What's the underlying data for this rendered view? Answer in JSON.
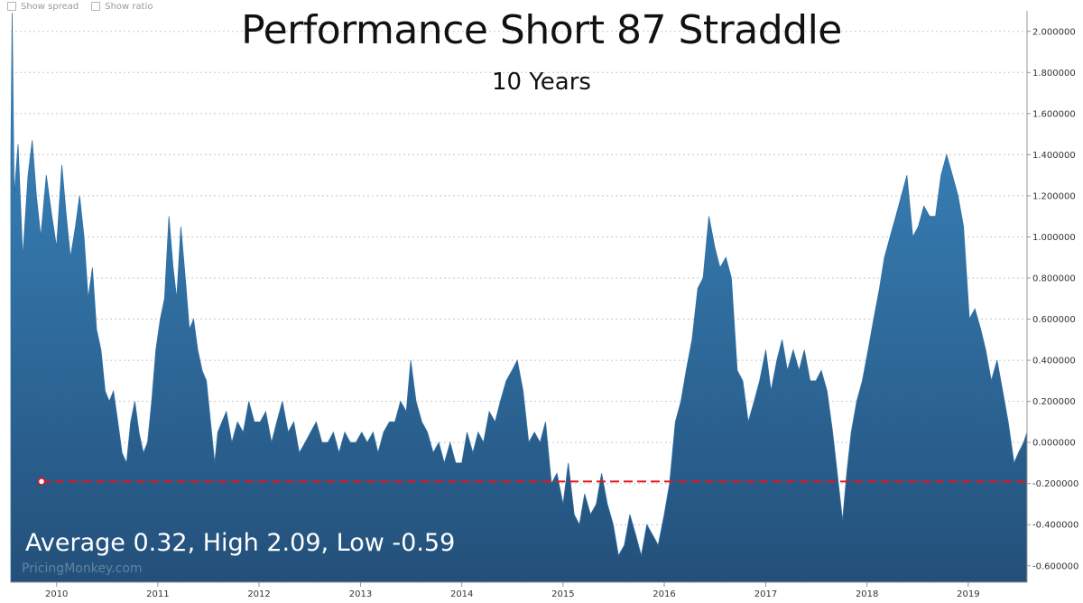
{
  "controls": {
    "show_spread": "Show spread",
    "show_ratio": "Show ratio"
  },
  "stats_text": "Average 0.32, High 2.09, Low -0.59",
  "watermark": "PricingMonkey.com",
  "colors": {
    "area_top": "#3d8cc6",
    "area_bottom": "#23507a",
    "average_line": "#e8141c",
    "grid": "#c8c8c8",
    "axis_text": "#333333"
  },
  "chart_data": {
    "type": "area",
    "title": "Performance Short 87 Straddle",
    "subtitle": "10 Years",
    "xlabel": "",
    "ylabel": "",
    "x_ticks": [
      "2010",
      "2011",
      "2012",
      "2013",
      "2014",
      "2015",
      "2016",
      "2017",
      "2018",
      "2019"
    ],
    "xlim": [
      "2009-07-20",
      "2019-08-01"
    ],
    "ylim": [
      -0.68,
      2.1
    ],
    "y_ticks": [
      "-0.600000",
      "-0.400000",
      "-0.200000",
      "0.000000",
      "0.200000",
      "0.400000",
      "0.600000",
      "0.800000",
      "1.000000",
      "1.200000",
      "1.400000",
      "1.600000",
      "1.800000",
      "2.000000"
    ],
    "y_axis_position": "right",
    "grid": true,
    "average": 0.32,
    "high": 2.09,
    "low": -0.59,
    "reference_line": {
      "value": -0.19,
      "style": "dashed",
      "label": ""
    },
    "series": [
      {
        "x": [
          "2009-07-20",
          "2009-07-25",
          "2009-08-01",
          "2009-08-15",
          "2009-09-01",
          "2009-09-20",
          "2009-10-05",
          "2009-10-20",
          "2009-11-05",
          "2009-11-25",
          "2009-12-15",
          "2010-01-01",
          "2010-01-20",
          "2010-02-05",
          "2010-02-20",
          "2010-03-10",
          "2010-03-25",
          "2010-04-10",
          "2010-04-25",
          "2010-05-10",
          "2010-05-25",
          "2010-06-10",
          "2010-06-25",
          "2010-07-10",
          "2010-07-25",
          "2010-08-10",
          "2010-08-25",
          "2010-09-10",
          "2010-09-25",
          "2010-10-10",
          "2010-10-25",
          "2010-11-10",
          "2010-11-25",
          "2010-12-10",
          "2010-12-25",
          "2011-01-10",
          "2011-01-25",
          "2011-02-10",
          "2011-02-25",
          "2011-03-10",
          "2011-03-25",
          "2011-04-10",
          "2011-04-25",
          "2011-05-10",
          "2011-05-25",
          "2011-06-10",
          "2011-06-25",
          "2011-07-10",
          "2011-07-25",
          "2011-08-05",
          "2011-08-20",
          "2011-09-05",
          "2011-09-25",
          "2011-10-15",
          "2011-11-05",
          "2011-11-25",
          "2011-12-15",
          "2012-01-05",
          "2012-01-25",
          "2012-02-15",
          "2012-03-05",
          "2012-03-25",
          "2012-04-15",
          "2012-05-05",
          "2012-05-25",
          "2012-06-15",
          "2012-07-05",
          "2012-07-25",
          "2012-08-15",
          "2012-09-05",
          "2012-09-25",
          "2012-10-15",
          "2012-11-05",
          "2012-11-25",
          "2012-12-15",
          "2013-01-05",
          "2013-01-25",
          "2013-02-15",
          "2013-03-05",
          "2013-03-25",
          "2013-04-15",
          "2013-05-05",
          "2013-05-25",
          "2013-06-15",
          "2013-07-01",
          "2013-07-20",
          "2013-08-10",
          "2013-08-30",
          "2013-09-20",
          "2013-10-10",
          "2013-10-30",
          "2013-11-20",
          "2013-12-10",
          "2014-01-01",
          "2014-01-20",
          "2014-02-10",
          "2014-03-01",
          "2014-03-20",
          "2014-04-10",
          "2014-05-01",
          "2014-05-20",
          "2014-06-10",
          "2014-07-01",
          "2014-07-20",
          "2014-08-10",
          "2014-08-30",
          "2014-09-20",
          "2014-10-10",
          "2014-10-30",
          "2014-11-20",
          "2014-12-10",
          "2015-01-01",
          "2015-01-20",
          "2015-02-10",
          "2015-03-01",
          "2015-03-20",
          "2015-04-10",
          "2015-05-01",
          "2015-05-20",
          "2015-06-10",
          "2015-07-01",
          "2015-07-20",
          "2015-08-10",
          "2015-08-30",
          "2015-09-20",
          "2015-10-10",
          "2015-10-30",
          "2015-11-20",
          "2015-12-10",
          "2016-01-01",
          "2016-01-20",
          "2016-02-10",
          "2016-03-01",
          "2016-03-20",
          "2016-04-10",
          "2016-05-01",
          "2016-05-20",
          "2016-06-10",
          "2016-07-01",
          "2016-07-20",
          "2016-08-10",
          "2016-08-30",
          "2016-09-20",
          "2016-10-10",
          "2016-10-30",
          "2016-11-20",
          "2016-12-10",
          "2017-01-01",
          "2017-01-20",
          "2017-02-10",
          "2017-03-01",
          "2017-03-20",
          "2017-04-10",
          "2017-05-01",
          "2017-05-20",
          "2017-06-10",
          "2017-07-01",
          "2017-07-20",
          "2017-08-10",
          "2017-08-30",
          "2017-09-20",
          "2017-10-05",
          "2017-10-20",
          "2017-11-05",
          "2017-11-25",
          "2017-12-15",
          "2018-01-05",
          "2018-01-25",
          "2018-02-15",
          "2018-03-05",
          "2018-03-25",
          "2018-04-15",
          "2018-05-05",
          "2018-05-25",
          "2018-06-15",
          "2018-07-05",
          "2018-07-25",
          "2018-08-15",
          "2018-09-05",
          "2018-09-25",
          "2018-10-15",
          "2018-11-05",
          "2018-11-25",
          "2018-12-15",
          "2019-01-05",
          "2019-01-25",
          "2019-02-15",
          "2019-03-05",
          "2019-03-25",
          "2019-04-15",
          "2019-05-05",
          "2019-05-25",
          "2019-06-15",
          "2019-07-01",
          "2019-07-20",
          "2019-08-01"
        ],
        "y": [
          1.4,
          2.09,
          1.2,
          1.45,
          0.9,
          1.3,
          1.47,
          1.2,
          1.0,
          1.3,
          1.1,
          0.95,
          1.35,
          1.1,
          0.9,
          1.05,
          1.2,
          1.0,
          0.7,
          0.85,
          0.55,
          0.45,
          0.25,
          0.2,
          0.25,
          0.1,
          -0.05,
          -0.1,
          0.1,
          0.2,
          0.05,
          -0.05,
          0.0,
          0.2,
          0.45,
          0.6,
          0.7,
          1.1,
          0.85,
          0.7,
          1.05,
          0.8,
          0.55,
          0.6,
          0.45,
          0.35,
          0.3,
          0.1,
          -0.1,
          0.05,
          0.1,
          0.15,
          0.0,
          0.1,
          0.05,
          0.2,
          0.1,
          0.1,
          0.15,
          0.0,
          0.1,
          0.2,
          0.05,
          0.1,
          -0.05,
          0.0,
          0.05,
          0.1,
          0.0,
          0.0,
          0.05,
          -0.05,
          0.05,
          0.0,
          0.0,
          0.05,
          0.0,
          0.05,
          -0.05,
          0.05,
          0.1,
          0.1,
          0.2,
          0.15,
          0.4,
          0.2,
          0.1,
          0.05,
          -0.05,
          0.0,
          -0.1,
          0.0,
          -0.1,
          -0.1,
          0.05,
          -0.05,
          0.05,
          0.0,
          0.15,
          0.1,
          0.2,
          0.3,
          0.35,
          0.4,
          0.25,
          0.0,
          0.05,
          0.0,
          0.1,
          -0.2,
          -0.15,
          -0.3,
          -0.1,
          -0.35,
          -0.4,
          -0.25,
          -0.35,
          -0.3,
          -0.15,
          -0.3,
          -0.4,
          -0.55,
          -0.5,
          -0.35,
          -0.45,
          -0.55,
          -0.4,
          -0.45,
          -0.5,
          -0.35,
          -0.2,
          0.1,
          0.2,
          0.35,
          0.5,
          0.75,
          0.8,
          1.1,
          0.95,
          0.85,
          0.9,
          0.8,
          0.35,
          0.3,
          0.1,
          0.2,
          0.3,
          0.45,
          0.25,
          0.4,
          0.5,
          0.35,
          0.45,
          0.35,
          0.45,
          0.3,
          0.3,
          0.35,
          0.25,
          0.05,
          -0.2,
          -0.38,
          -0.15,
          0.05,
          0.2,
          0.3,
          0.45,
          0.6,
          0.75,
          0.9,
          1.0,
          1.1,
          1.2,
          1.3,
          1.0,
          1.05,
          1.15,
          1.1,
          1.1,
          1.3,
          1.4,
          1.3,
          1.2,
          1.05,
          0.6,
          0.65,
          0.55,
          0.45,
          0.3,
          0.4,
          0.25,
          0.1,
          -0.1,
          -0.05,
          0.0,
          0.05
        ]
      }
    ]
  }
}
